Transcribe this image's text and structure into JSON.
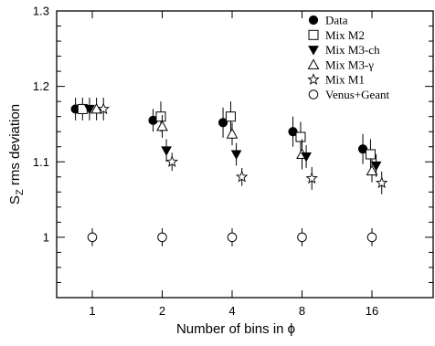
{
  "chart_data": {
    "type": "scatter",
    "title": "",
    "xlabel": "Number of bins in  ϕ",
    "ylabel_main": "S",
    "ylabel_sub": "Z",
    "ylabel_rest": " rms deviation",
    "ylim": [
      0.92,
      1.3
    ],
    "yticks": [
      {
        "value": 1.0,
        "label": "1"
      },
      {
        "value": 1.1,
        "label": "1.1"
      },
      {
        "value": 1.2,
        "label": "1.2"
      },
      {
        "value": 1.3,
        "label": "1.3"
      }
    ],
    "categories": [
      "1",
      "2",
      "4",
      "8",
      "16"
    ],
    "grid": false,
    "legend_position": "top-right",
    "series": [
      {
        "name": "Data",
        "marker": "filled-circle",
        "offset": -0.13,
        "values": [
          1.17,
          1.155,
          1.152,
          1.14,
          1.117
        ],
        "errors": [
          0.015,
          0.015,
          0.02,
          0.02,
          0.02
        ]
      },
      {
        "name": "Mix M2",
        "marker": "open-square",
        "offset": -0.02,
        "values": [
          1.17,
          1.16,
          1.16,
          1.133,
          1.11
        ],
        "errors": [
          0.015,
          0.02,
          0.02,
          0.02,
          0.02
        ]
      },
      {
        "name": "Mix M3-ch",
        "marker": "filled-down-triangle",
        "offset": 0.06,
        "values": [
          1.17,
          1.115,
          1.11,
          1.107,
          1.095
        ],
        "errors": [
          0.015,
          0.015,
          0.015,
          0.015,
          0.015
        ]
      },
      {
        "name": "Mix M3-γ",
        "marker": "open-up-triangle",
        "offset": 0.0,
        "values": [
          1.17,
          1.147,
          1.137,
          1.11,
          1.088
        ],
        "errors": [
          0.015,
          0.015,
          0.015,
          0.02,
          0.015
        ]
      },
      {
        "name": "Mix M1",
        "marker": "open-star",
        "offset": 0.14,
        "values": [
          1.17,
          1.1,
          1.08,
          1.078,
          1.072
        ],
        "errors": [
          0.015,
          0.012,
          0.012,
          0.015,
          0.015
        ]
      },
      {
        "name": "Venus+Geant",
        "marker": "open-circle",
        "offset": 0.0,
        "values": [
          1.0,
          1.0,
          1.0,
          1.0,
          1.0
        ],
        "errors": [
          0.012,
          0.012,
          0.012,
          0.012,
          0.012
        ]
      }
    ]
  }
}
